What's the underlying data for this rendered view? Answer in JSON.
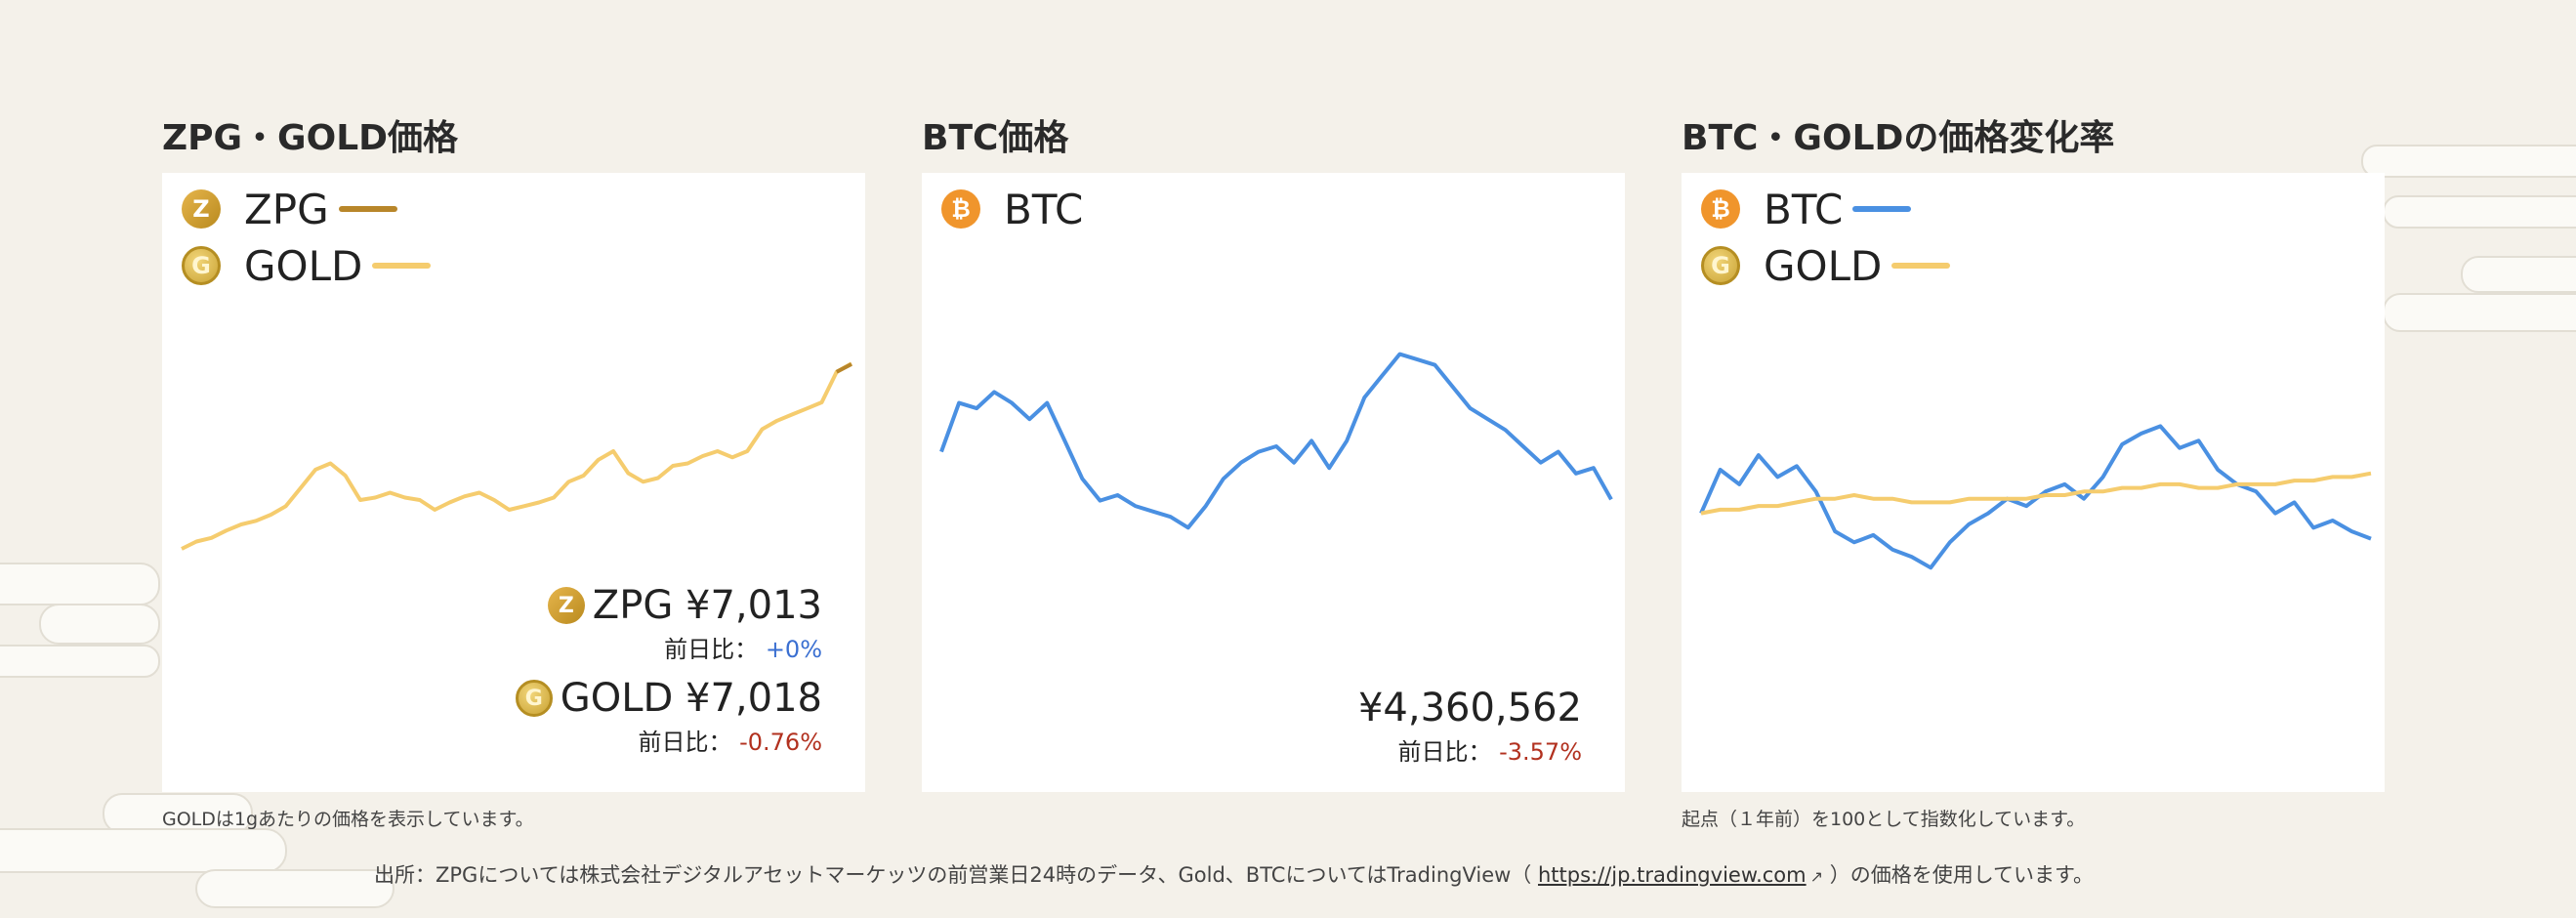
{
  "colors": {
    "zpg": "#b8862a",
    "gold": "#f5cc6e",
    "btc": "#4a90e2",
    "neg": "#b2311f",
    "pos": "#3a6fd1"
  },
  "panels": [
    {
      "title": "ZPG・GOLD価格",
      "legend": [
        {
          "label": "ZPG",
          "icon": "zpg-coin-icon"
        },
        {
          "label": "GOLD",
          "icon": "gold-coin-icon"
        }
      ],
      "prices": [
        {
          "label": "ZPG ¥7,013",
          "change_label": "前日比：",
          "change": "+0%"
        },
        {
          "label": "GOLD ¥7,018",
          "change_label": "前日比：",
          "change": "-0.76%"
        }
      ],
      "note": "GOLDは1gあたりの価格を表示しています。"
    },
    {
      "title": "BTC価格",
      "legend": [
        {
          "label": "BTC",
          "icon": "btc-coin-icon"
        }
      ],
      "prices": [
        {
          "label": "¥4,360,562",
          "change_label": "前日比：",
          "change": "-3.57%"
        }
      ]
    },
    {
      "title": "BTC・GOLDの価格変化率",
      "legend": [
        {
          "label": "BTC",
          "icon": "btc-coin-icon"
        },
        {
          "label": "GOLD",
          "icon": "gold-coin-icon"
        }
      ],
      "note": "起点（１年前）を100として指数化しています。"
    }
  ],
  "source": {
    "prefix": "出所：ZPGについては株式会社デジタルアセットマーケッツの前営業日24時のデータ、Gold、BTCについてはTradingView（ ",
    "link": "https://jp.tradingview.com",
    "suffix": " ）の価格を使用しています。"
  },
  "chart_data": [
    {
      "type": "line",
      "title": "ZPG・GOLD価格",
      "ylim": [
        5300,
        7300
      ],
      "series": [
        {
          "name": "GOLD",
          "color": "#f5cc6e",
          "values": [
            5500,
            5560,
            5590,
            5650,
            5700,
            5730,
            5780,
            5850,
            6000,
            6150,
            6200,
            6100,
            5900,
            5920,
            5960,
            5920,
            5900,
            5820,
            5880,
            5930,
            5960,
            5900,
            5820,
            5850,
            5880,
            5920,
            6050,
            6100,
            6230,
            6300,
            6120,
            6050,
            6080,
            6180,
            6200,
            6260,
            6300,
            6250,
            6300,
            6480,
            6550,
            6600,
            6650,
            6700,
            6950,
            7018
          ]
        },
        {
          "name": "ZPG",
          "color": "#b8862a",
          "values": [
            null,
            null,
            null,
            null,
            null,
            null,
            null,
            null,
            null,
            null,
            null,
            null,
            null,
            null,
            null,
            null,
            null,
            null,
            null,
            null,
            null,
            null,
            null,
            null,
            null,
            null,
            null,
            null,
            null,
            null,
            null,
            null,
            null,
            null,
            null,
            null,
            null,
            null,
            null,
            null,
            null,
            null,
            null,
            null,
            6950,
            7013
          ]
        }
      ]
    },
    {
      "type": "line",
      "title": "BTC価格",
      "ylim": [
        3500000,
        6200000
      ],
      "series": [
        {
          "name": "BTC",
          "color": "#4a90e2",
          "values": [
            4800000,
            5250000,
            5200000,
            5350000,
            5250000,
            5100000,
            5250000,
            4900000,
            4550000,
            4350000,
            4400000,
            4300000,
            4250000,
            4200000,
            4100000,
            4300000,
            4550000,
            4700000,
            4800000,
            4850000,
            4700000,
            4900000,
            4650000,
            4900000,
            5300000,
            5500000,
            5700000,
            5650000,
            5600000,
            5400000,
            5200000,
            5100000,
            5000000,
            4850000,
            4700000,
            4800000,
            4600000,
            4650000,
            4360562
          ]
        }
      ]
    },
    {
      "type": "line",
      "title": "BTC・GOLDの価格変化率",
      "ylim": [
        70,
        140
      ],
      "series": [
        {
          "name": "BTC",
          "color": "#4a90e2",
          "values": [
            100,
            112,
            108,
            116,
            110,
            113,
            106,
            95,
            92,
            94,
            90,
            88,
            85,
            92,
            97,
            100,
            104,
            102,
            106,
            108,
            104,
            110,
            119,
            122,
            124,
            118,
            120,
            112,
            108,
            106,
            100,
            103,
            96,
            98,
            95,
            93
          ]
        },
        {
          "name": "GOLD",
          "color": "#f5cc6e",
          "values": [
            100,
            101,
            101,
            102,
            102,
            103,
            104,
            104,
            105,
            104,
            104,
            103,
            103,
            103,
            104,
            104,
            104,
            104,
            105,
            105,
            106,
            106,
            107,
            107,
            108,
            108,
            107,
            107,
            108,
            108,
            108,
            109,
            109,
            110,
            110,
            111
          ]
        }
      ]
    }
  ]
}
